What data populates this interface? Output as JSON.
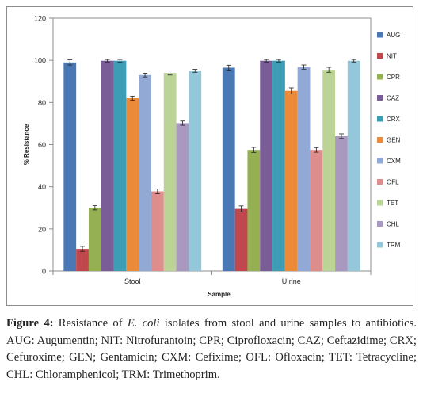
{
  "chart_data": {
    "type": "bar",
    "categories": [
      "Stool",
      "U rine"
    ],
    "xlabel": "Sample",
    "ylabel": "% Resistance",
    "ylim": [
      0,
      120
    ],
    "yticks": [
      0,
      20,
      40,
      60,
      80,
      100,
      120
    ],
    "grid": false,
    "legend_position": "right",
    "error_bars": true,
    "series": [
      {
        "name": "AUG",
        "color": "#4a78b4",
        "values": [
          99,
          96.5
        ],
        "errors": [
          1.2,
          1.2
        ]
      },
      {
        "name": "NIT",
        "color": "#c0474c",
        "values": [
          10.5,
          29.5
        ],
        "errors": [
          1.2,
          1.4
        ]
      },
      {
        "name": "CPR",
        "color": "#94b052",
        "values": [
          30,
          57.5
        ],
        "errors": [
          1.0,
          1.2
        ]
      },
      {
        "name": "CAZ",
        "color": "#7a5d97",
        "values": [
          99.8,
          99.8
        ],
        "errors": [
          0.6,
          0.6
        ]
      },
      {
        "name": "CRX",
        "color": "#3d9db5",
        "values": [
          99.8,
          99.8
        ],
        "errors": [
          0.6,
          0.6
        ]
      },
      {
        "name": "GEN",
        "color": "#eb8a39",
        "values": [
          82,
          85.5
        ],
        "errors": [
          1.0,
          1.4
        ]
      },
      {
        "name": "CXM",
        "color": "#92a9d6",
        "values": [
          93,
          96.8
        ],
        "errors": [
          0.9,
          1.0
        ]
      },
      {
        "name": "OFL",
        "color": "#dd8d8b",
        "values": [
          37.8,
          57.5
        ],
        "errors": [
          1.1,
          1.1
        ]
      },
      {
        "name": "TET",
        "color": "#bbd395",
        "values": [
          94,
          95.5
        ],
        "errors": [
          1.0,
          1.2
        ]
      },
      {
        "name": "CHL",
        "color": "#a999c1",
        "values": [
          70.2,
          64
        ],
        "errors": [
          1.0,
          1.1
        ]
      },
      {
        "name": "TRM",
        "color": "#94c7d9",
        "values": [
          95,
          99.8
        ],
        "errors": [
          0.7,
          0.6
        ]
      }
    ]
  },
  "caption": {
    "label": "Figure 4:",
    "text_before": " Resistance of ",
    "species": "E. coli",
    "text_after": " isolates from stool and urine samples to antibiotics. AUG: Augumentin; NIT: Nitrofurantoin; CPR; Ciprofloxacin; CAZ; Ceftazidime; CRX; Cefuroxime; GEN; Gentamicin; CXM: Cefixime; OFL: Ofloxacin; TET: Tetracycline; CHL: Chloramphenicol; TRM: Trimethoprim."
  }
}
